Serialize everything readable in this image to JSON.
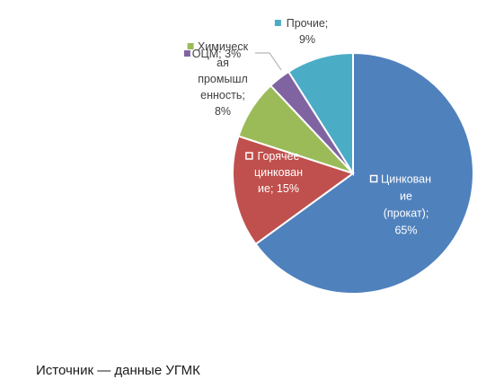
{
  "chart_data": {
    "type": "pie",
    "title": "",
    "source_note": "Источник — данные УГМК",
    "slices": [
      {
        "label": "Цинкование (прокат)",
        "value": 65,
        "value_text": "65%",
        "color": "#4f81bd",
        "label_lines": [
          "Цинкован",
          "ие",
          "(прокат);",
          "65%"
        ],
        "label_style": "light",
        "marker": true
      },
      {
        "label": "Горячее цинкование",
        "value": 15,
        "value_text": "15%",
        "color": "#c0504d",
        "label_lines": [
          "Горячее",
          "цинкован",
          "ие; 15%"
        ],
        "label_style": "light",
        "marker": true
      },
      {
        "label": "Химическая промышленность",
        "value": 8,
        "value_text": "8%",
        "color": "#9bbb59",
        "label_lines": [
          "Химическ",
          "ая",
          "промышл",
          "енность;",
          "8%"
        ],
        "label_style": "dark",
        "marker": true
      },
      {
        "label": "ОЦМ",
        "value": 3,
        "value_text": "3%",
        "color": "#8064a2",
        "label_lines": [
          "ОЦМ; 3%"
        ],
        "label_style": "dark",
        "marker": true
      },
      {
        "label": "Прочие",
        "value": 9,
        "value_text": "9%",
        "color": "#4bacc6",
        "label_lines": [
          "Прочие;",
          "9%"
        ],
        "label_style": "dark",
        "marker": true
      }
    ]
  }
}
